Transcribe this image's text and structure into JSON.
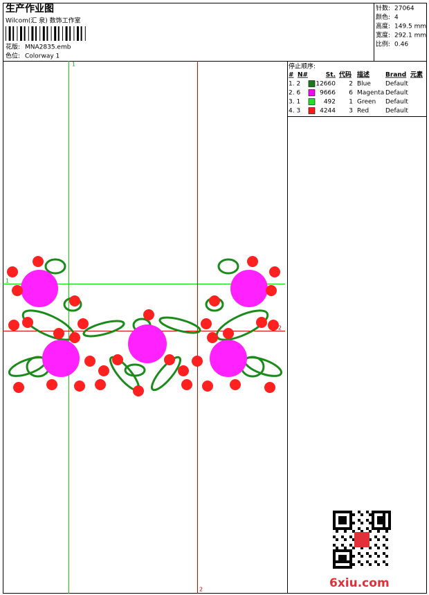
{
  "header": {
    "title": "生产作业图",
    "subtitle": "Wilcom(汇 泉) 数饰工作室",
    "design_label": "花版:",
    "design_file": "MNA2835.emb",
    "colorway_label": "色位:",
    "colorway": "Colorway 1"
  },
  "info": [
    {
      "label": "针数:",
      "value": "27064"
    },
    {
      "label": "颜色:",
      "value": "4"
    },
    {
      "label": "高度:",
      "value": "149.5 mm"
    },
    {
      "label": "宽度:",
      "value": "292.1 mm"
    },
    {
      "label": "比例:",
      "value": "0.46"
    }
  ],
  "stop_sequence": {
    "title": "停止顺序:",
    "columns": [
      "#",
      "N#",
      "St.",
      "代码",
      "描述",
      "Brand",
      "元素"
    ],
    "rows": [
      {
        "index": "1. 2",
        "color": "#1a7a1a",
        "stitches": 12660,
        "code": 2,
        "description": "Blue",
        "brand": "Default"
      },
      {
        "index": "2. 6",
        "color": "#ff00ff",
        "stitches": 9666,
        "code": 6,
        "description": "Magenta",
        "brand": "Default"
      },
      {
        "index": "3. 1",
        "color": "#22e022",
        "stitches": 492,
        "code": 1,
        "description": "Green",
        "brand": "Default"
      },
      {
        "index": "4. 3",
        "color": "#ff1a1a",
        "stitches": 4244,
        "code": 3,
        "description": "Red",
        "brand": "Default"
      }
    ]
  },
  "guides": {
    "green_label": "1",
    "green_h_label": "1",
    "red_label": "2",
    "red_h_label": "2",
    "red_bottom_label": "2"
  },
  "watermark": "6xiu.com"
}
